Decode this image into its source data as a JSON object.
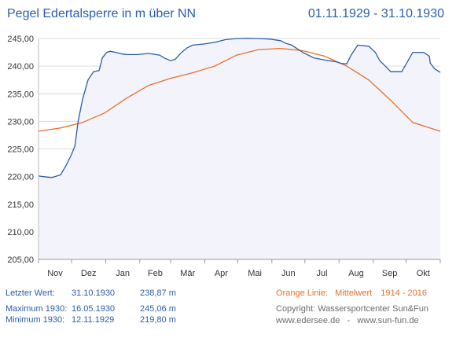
{
  "header": {
    "title": "Pegel Edertalsperre in m über NN",
    "period": "01.11.1929 - 31.10.1930"
  },
  "stats": [
    {
      "label": "Letzter Wert:",
      "date": "31.10.1930",
      "value": "238,87 m"
    },
    {
      "label": "Maximum 1930:",
      "date": "16.05.1930",
      "value": "245,06 m"
    },
    {
      "label": "Minimum  1930:",
      "date": "12.11.1929",
      "value": "219,80 m"
    }
  ],
  "legend_note": {
    "label": "Orange Linie:",
    "text": "Mittelwert",
    "range": "1914 - 2016"
  },
  "copyright": {
    "line1": "Copyright: Wassersportcenter Sun&Fun",
    "line2": "www.edersee.de   -   www.sun-fun.de"
  },
  "chart_data": {
    "type": "line",
    "xlabel": "",
    "ylabel": "",
    "ylim": [
      205,
      245
    ],
    "y_ticks": [
      "245,00",
      "240,00",
      "235,00",
      "230,00",
      "225,00",
      "220,00",
      "215,00",
      "210,00",
      "205,00"
    ],
    "x_ticks": [
      "Nov",
      "Dez",
      "Jan",
      "Feb",
      "Mär",
      "Apr",
      "Mai",
      "Jun",
      "Jul",
      "Aug",
      "Sep",
      "Okt"
    ],
    "x_unit": "day of hydrological year (0 = 01.11.1929)",
    "grid": "horizontal",
    "colors": {
      "series_1930": "#2a5da8",
      "mean": "#e8702a",
      "area_fill": "#f2f3fb",
      "grid": "#dcdcdc"
    },
    "series": [
      {
        "name": "",
        "x": [
          0,
          8,
          12,
          20,
          25,
          30,
          33,
          36,
          40,
          45,
          50,
          55,
          58,
          62,
          65,
          70,
          76,
          80,
          90,
          100,
          110,
          115,
          120,
          124,
          130,
          135,
          140,
          150,
          160,
          170,
          180,
          190,
          200,
          210,
          220,
          225,
          230,
          240,
          250,
          260,
          270,
          275,
          280,
          284,
          290,
          300,
          306,
          310,
          315,
          320,
          330,
          340,
          350,
          355,
          356,
          360,
          365
        ],
        "values": [
          220.1,
          219.9,
          219.8,
          220.3,
          222.0,
          224.0,
          225.5,
          230.0,
          234.0,
          237.5,
          239.0,
          239.2,
          241.5,
          242.5,
          242.7,
          242.5,
          242.2,
          242.1,
          242.1,
          242.3,
          242.0,
          241.4,
          241.0,
          241.2,
          242.5,
          243.3,
          243.8,
          244.0,
          244.3,
          244.8,
          245.0,
          245.06,
          245.0,
          244.9,
          244.6,
          244.1,
          243.8,
          242.5,
          241.5,
          241.1,
          240.8,
          240.5,
          240.4,
          242.0,
          243.8,
          243.6,
          242.5,
          241.0,
          240.0,
          239.0,
          239.0,
          242.5,
          242.5,
          241.8,
          240.5,
          239.5,
          238.87
        ]
      },
      {
        "name": "Mittelwert",
        "x": [
          0,
          20,
          40,
          60,
          80,
          100,
          120,
          140,
          160,
          180,
          200,
          220,
          240,
          260,
          280,
          300,
          320,
          340,
          365
        ],
        "values": [
          228.2,
          228.8,
          229.8,
          231.5,
          234.2,
          236.5,
          237.8,
          238.8,
          240.0,
          242.0,
          243.0,
          243.2,
          242.8,
          241.8,
          240.0,
          237.5,
          233.8,
          229.8,
          228.2
        ]
      }
    ]
  }
}
